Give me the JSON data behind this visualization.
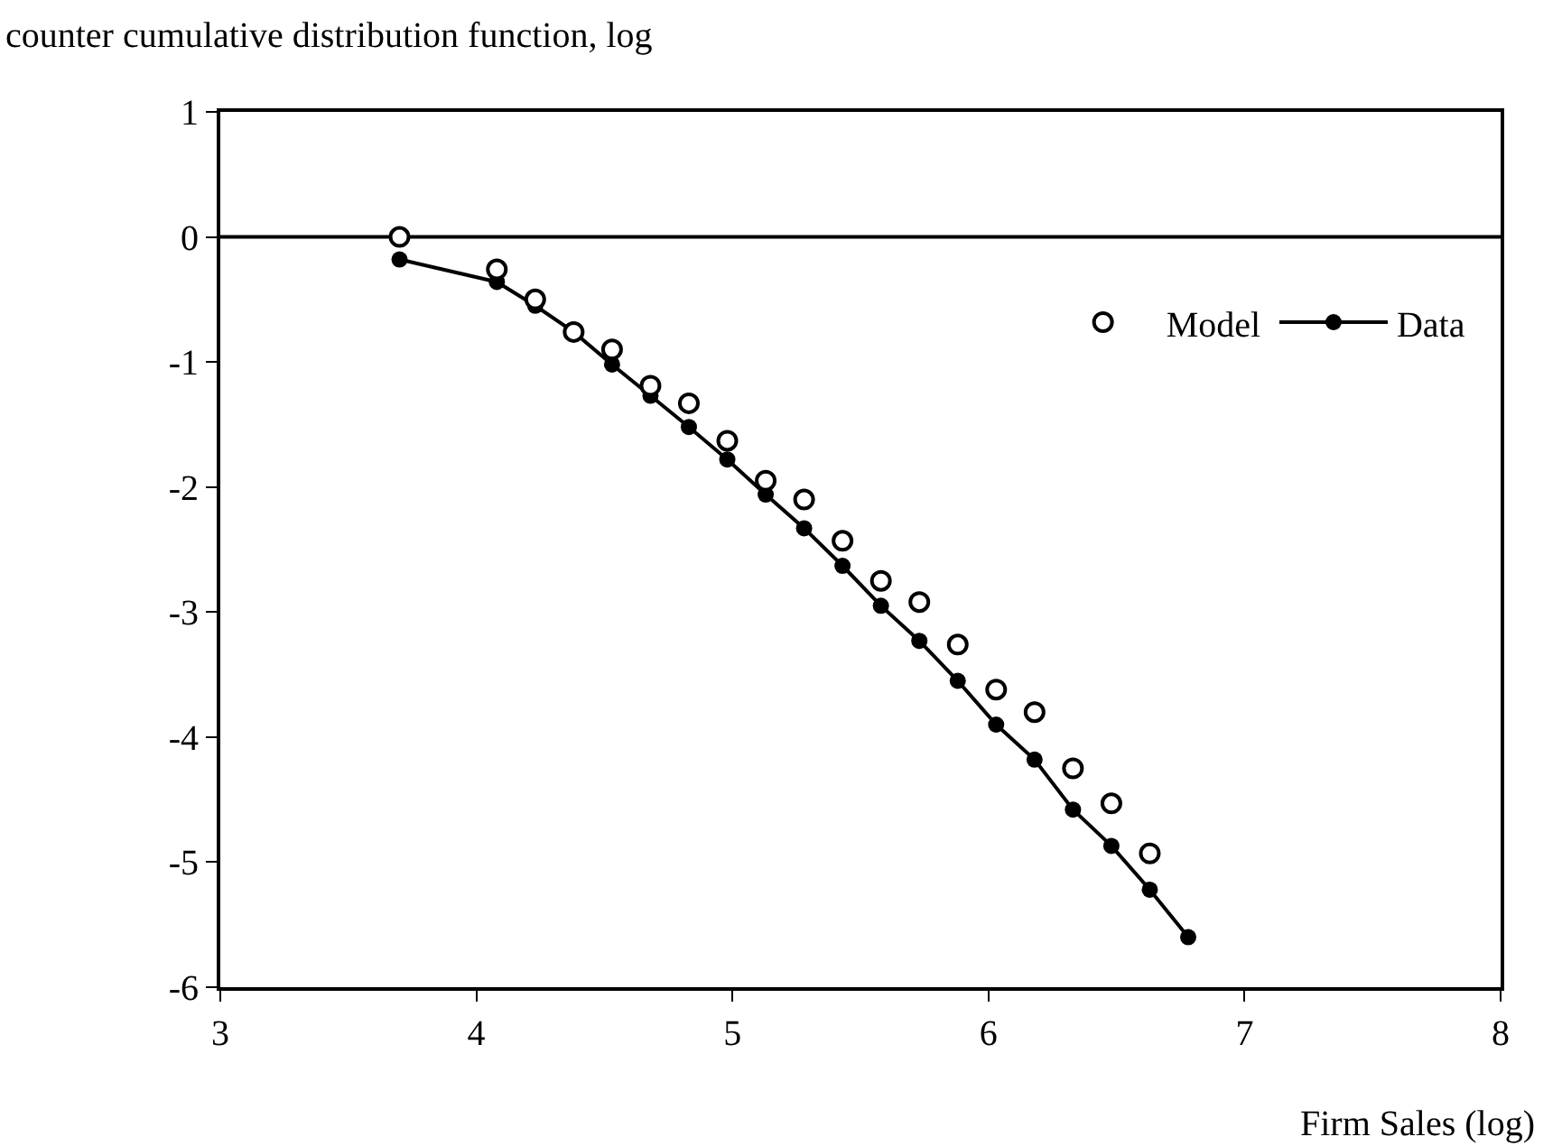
{
  "chart_data": {
    "type": "scatter",
    "ylabel": "counter cumulative distribution function, log",
    "xlabel": "Firm Sales (log)",
    "xlim": [
      3,
      8
    ],
    "xticks": [
      3,
      4,
      5,
      6,
      7,
      8
    ],
    "ylim": [
      -6,
      1
    ],
    "yticks": [
      -6,
      -5,
      -4,
      -3,
      -2,
      -1,
      0,
      1
    ],
    "grid": false,
    "legend": "top right",
    "ref_lines": [
      {
        "axis": "y",
        "value": 0,
        "color": "#000000",
        "line_style": "solid"
      }
    ],
    "series": [
      {
        "name": "Model",
        "marker": "circle",
        "color": "#000000",
        "x": [
          3.7,
          4.08,
          4.23,
          4.38,
          4.53,
          4.68,
          4.83,
          4.98,
          5.13,
          5.28,
          5.43,
          5.58,
          5.73,
          5.88,
          6.03,
          6.18,
          6.33,
          6.48,
          6.63
        ],
        "values": [
          0,
          -0.26,
          -0.5,
          -0.76,
          -0.9,
          -1.19,
          -1.33,
          -1.63,
          -1.95,
          -2.1,
          -2.43,
          -2.75,
          -2.92,
          -3.26,
          -3.62,
          -3.8,
          -4.25,
          -4.53,
          -4.93
        ]
      },
      {
        "name": "Data",
        "type": "line",
        "marker": "circle",
        "line_style": "solid",
        "color": "#000000",
        "x": [
          3.7,
          4.08,
          4.23,
          4.38,
          4.53,
          4.68,
          4.83,
          4.98,
          5.13,
          5.28,
          5.43,
          5.58,
          5.73,
          5.88,
          6.03,
          6.18,
          6.33,
          6.48,
          6.63,
          6.78
        ],
        "values": [
          -0.18,
          -0.36,
          -0.55,
          -0.76,
          -1.02,
          -1.27,
          -1.52,
          -1.78,
          -2.06,
          -2.33,
          -2.63,
          -2.95,
          -3.23,
          -3.55,
          -3.9,
          -4.18,
          -4.58,
          -4.87,
          -5.22,
          -5.6
        ]
      }
    ]
  }
}
